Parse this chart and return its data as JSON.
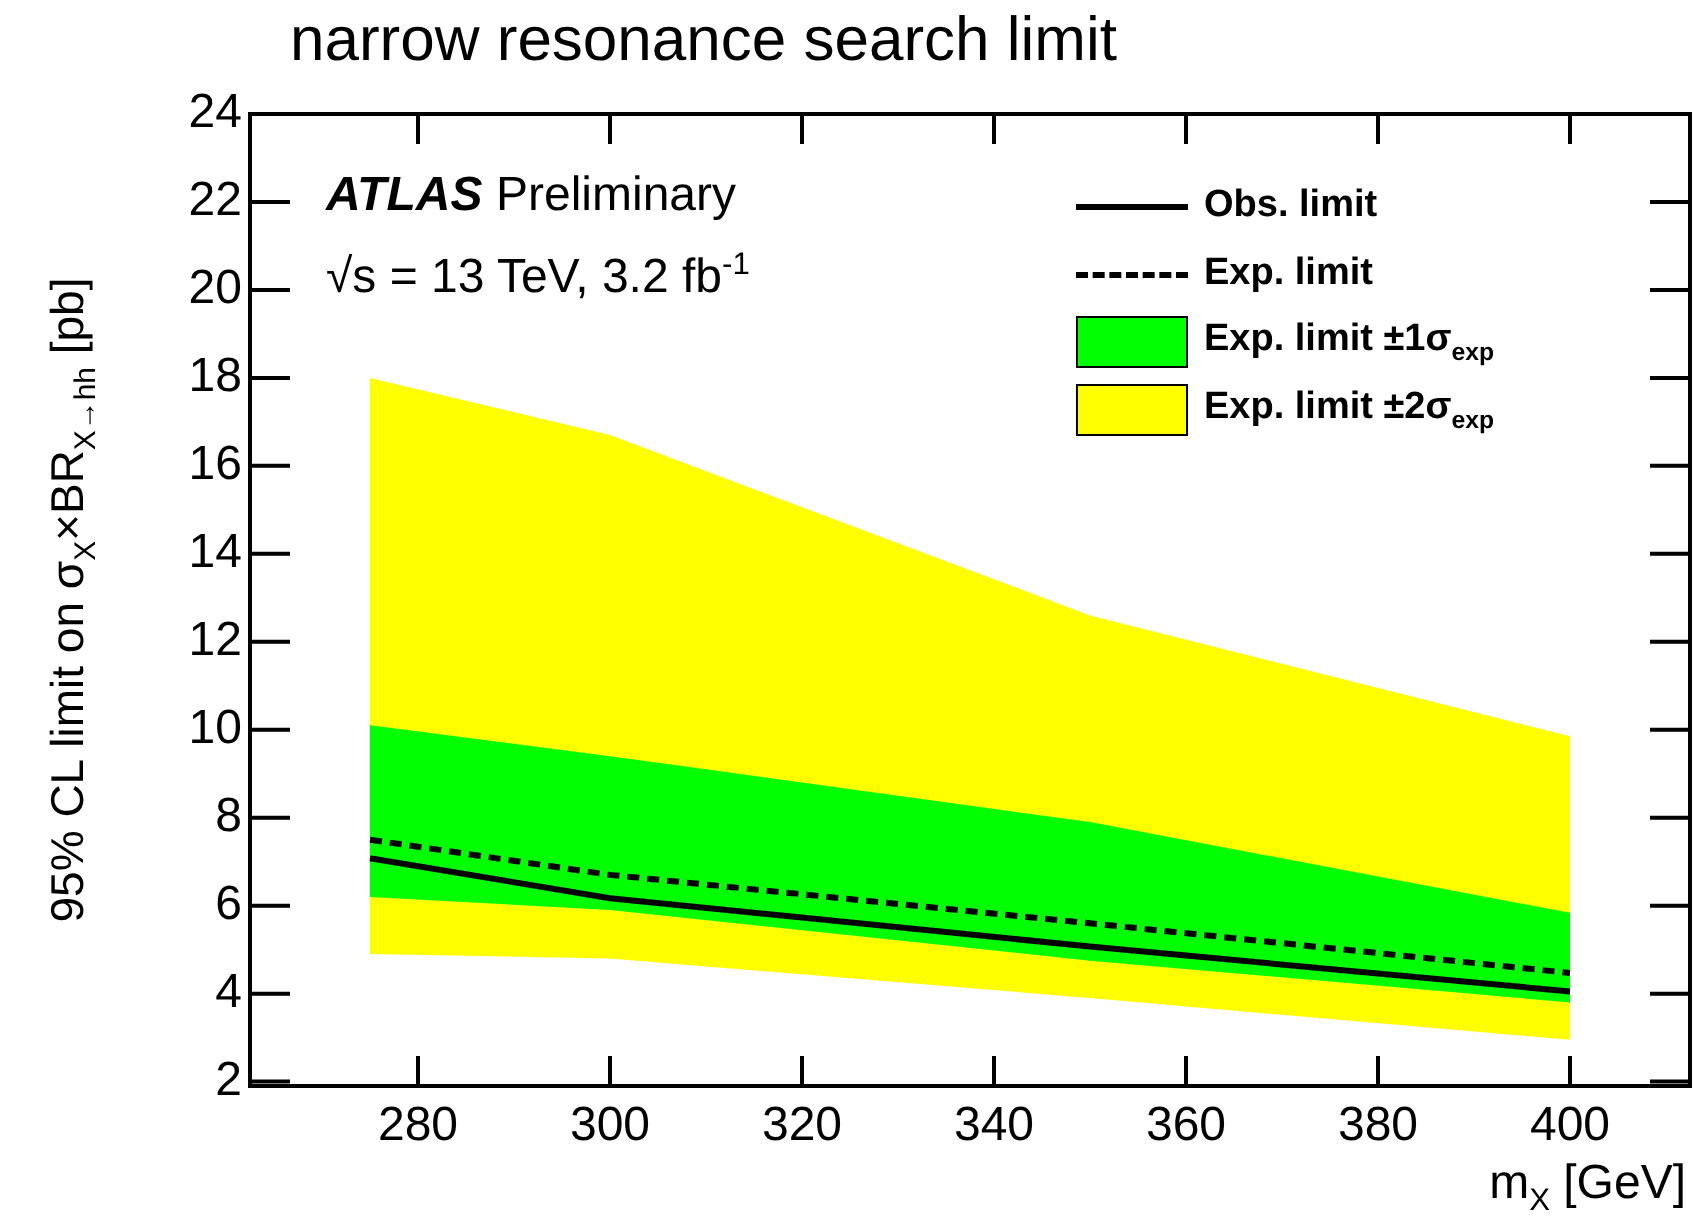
{
  "chart_data": {
    "type": "line",
    "title": "narrow resonance search limit",
    "xlabel": "m$_{X}$ [GeV]",
    "ylabel": "95% CL limit on σ$_{X}$×BR$_{X→hh}$ [pb]",
    "annotations": [
      "ATLAS",
      "Preliminary",
      "√s = 13 TeV, 3.2 fb$^{-1}$"
    ],
    "x": [
      275,
      300,
      350,
      400
    ],
    "series": [
      {
        "name": "Obs. limit",
        "type": "line",
        "color": "#000000",
        "line_style": "solid",
        "values": [
          7.08,
          6.17,
          5.07,
          4.05
        ]
      },
      {
        "name": "Exp. limit",
        "type": "line",
        "color": "#000000",
        "line_style": "dashed",
        "values": [
          7.5,
          6.7,
          5.6,
          4.47
        ]
      },
      {
        "name": "Exp. limit ±1σ$_{exp}$",
        "type": "line",
        "color": "#00ff00",
        "values": [
          null,
          null,
          null,
          null
        ],
        "lower": [
          6.2,
          5.9,
          4.75,
          3.8
        ],
        "upper": [
          10.1,
          9.4,
          7.9,
          5.84
        ]
      },
      {
        "name": "Exp. limit ±2σ$_{exp}$",
        "type": "line",
        "color": "#ffff00",
        "values": [
          null,
          null,
          null,
          null
        ],
        "lower": [
          4.9,
          4.8,
          3.9,
          2.95
        ],
        "upper": [
          18.0,
          16.7,
          12.6,
          9.85
        ]
      }
    ],
    "xlim": [
      262.5,
      412.5
    ],
    "xticks": [
      280,
      300,
      320,
      340,
      360,
      380,
      400
    ],
    "ylim": [
      1.9,
      24
    ],
    "yticks": [
      2,
      4,
      6,
      8,
      10,
      12,
      14,
      16,
      18,
      20,
      22,
      24
    ],
    "grid": false,
    "legend": "top right",
    "marker": "none"
  }
}
